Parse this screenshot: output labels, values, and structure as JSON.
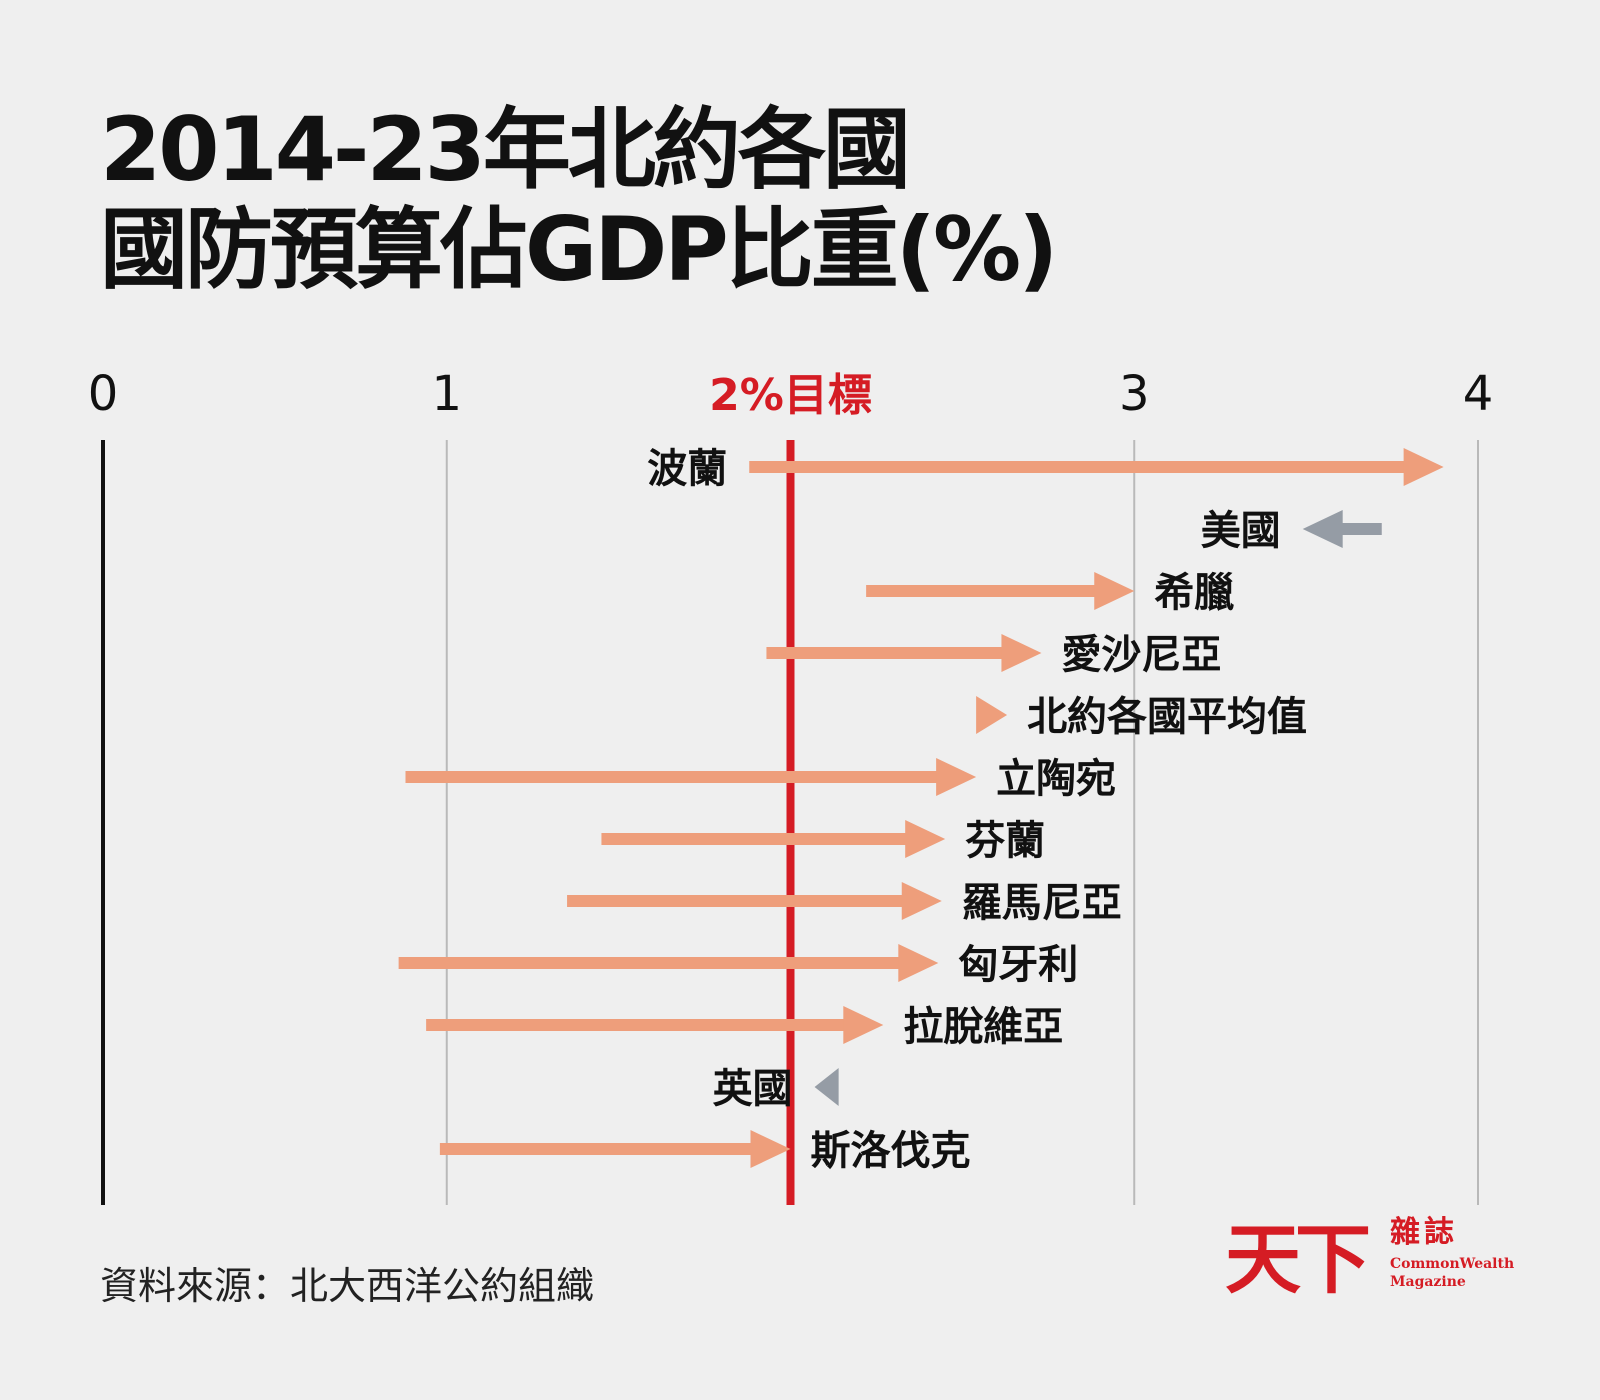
{
  "title": {
    "line1": "2014-23年北約各國",
    "line2": "國防預算佔GDP比重(%)"
  },
  "source": "資料來源：北大西洋公約組織",
  "logo": {
    "mark": "天下",
    "cn": "雜誌",
    "en": "CommonWealth\nMagazine"
  },
  "colors": {
    "increase": "#ee9e7b",
    "decrease": "#959ca5",
    "target": "#d51c24",
    "grid": "#b9b9b9",
    "axis": "#111111"
  },
  "chart_data": {
    "type": "arrow",
    "xlim": [
      0,
      4
    ],
    "ticks": [
      {
        "value": 0,
        "label": "0"
      },
      {
        "value": 1,
        "label": "1"
      },
      {
        "value": 2,
        "label": "2%目標"
      },
      {
        "value": 3,
        "label": "3"
      },
      {
        "value": 4,
        "label": "4"
      }
    ],
    "target_value": 2,
    "series": [
      {
        "label": "波蘭",
        "start": 1.88,
        "end": 3.9
      },
      {
        "label": "美國",
        "start": 3.72,
        "end": 3.49
      },
      {
        "label": "希臘",
        "start": 2.22,
        "end": 3.0
      },
      {
        "label": "愛沙尼亞",
        "start": 1.93,
        "end": 2.73
      },
      {
        "label": "北約各國平均值",
        "start": 2.54,
        "end": 2.63
      },
      {
        "label": "立陶宛",
        "start": 0.88,
        "end": 2.54
      },
      {
        "label": "芬蘭",
        "start": 1.45,
        "end": 2.45
      },
      {
        "label": "羅馬尼亞",
        "start": 1.35,
        "end": 2.44
      },
      {
        "label": "匈牙利",
        "start": 0.86,
        "end": 2.43
      },
      {
        "label": "拉脫維亞",
        "start": 0.94,
        "end": 2.27
      },
      {
        "label": "英國",
        "start": 2.14,
        "end": 2.07
      },
      {
        "label": "斯洛伐克",
        "start": 0.98,
        "end": 2.0
      }
    ]
  }
}
